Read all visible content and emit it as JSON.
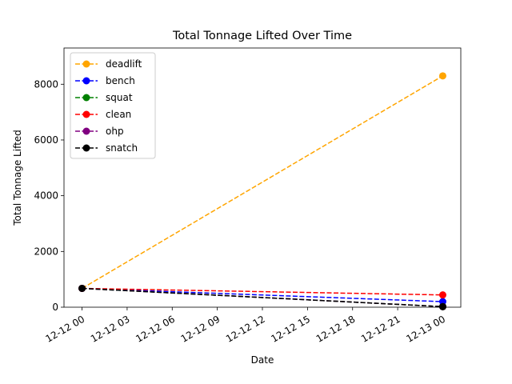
{
  "chart_data": {
    "type": "line",
    "title": "Total Tonnage Lifted Over Time",
    "xlabel": "Date",
    "ylabel": "Total Tonnage Lifted",
    "x": [
      "2023-12-12 00:00",
      "2023-12-13 00:00"
    ],
    "xlim": [
      "2023-12-11 22:48",
      "2023-12-13 01:12"
    ],
    "ylim": [
      0,
      9300
    ],
    "x_ticks": [
      "12-12 00",
      "12-12 03",
      "12-12 06",
      "12-12 09",
      "12-12 12",
      "12-12 15",
      "12-12 18",
      "12-12 21",
      "12-13 00"
    ],
    "y_ticks": [
      0,
      2000,
      4000,
      6000,
      8000
    ],
    "grid": false,
    "legend_position": "upper-left",
    "line_style": "dashed",
    "marker": "circle",
    "series": [
      {
        "name": "deadlift",
        "color": "#ffa500",
        "values": [
          675,
          8300
        ]
      },
      {
        "name": "bench",
        "color": "#0000ff",
        "values": [
          675,
          200
        ]
      },
      {
        "name": "squat",
        "color": "#008000",
        "values": [
          675,
          20
        ]
      },
      {
        "name": "clean",
        "color": "#ff0000",
        "values": [
          675,
          440
        ]
      },
      {
        "name": "ohp",
        "color": "#800080",
        "values": [
          675,
          20
        ]
      },
      {
        "name": "snatch",
        "color": "#000000",
        "values": [
          675,
          20
        ]
      }
    ]
  }
}
